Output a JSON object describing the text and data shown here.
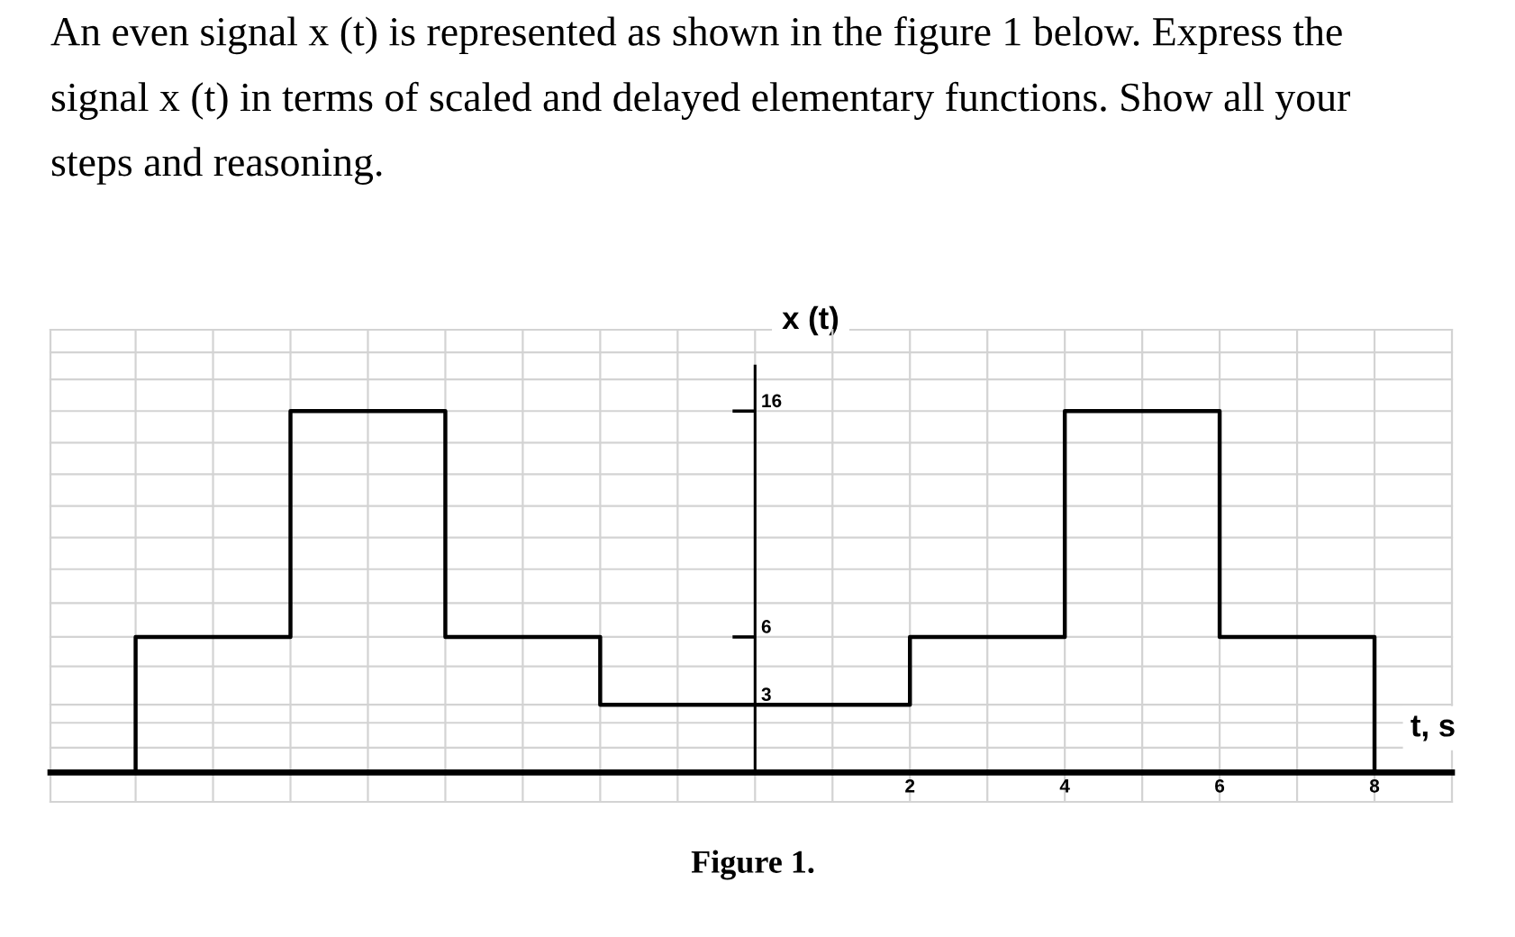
{
  "chart_data": {
    "type": "step",
    "title": "An even signal x (t) is represented as shown in the figure 1 below. Express the signal x (t) in terms of scaled and delayed elementary functions. Show all your steps and reasoning.",
    "xlabel": "t, s",
    "ylabel": "x (t)",
    "annotations": [
      "Figure 1."
    ],
    "x": [
      -8,
      -8,
      -6,
      -4,
      -2,
      2,
      4,
      6,
      8
    ],
    "values": [
      0,
      6,
      16,
      6,
      3,
      6,
      16,
      6,
      0
    ],
    "color": "#000000",
    "xlim": [
      -9.1,
      9
    ],
    "xticks": [
      {
        "value": -9.1,
        "label": null
      },
      {
        "value": -8,
        "label": null
      },
      {
        "value": -7,
        "label": null
      },
      {
        "value": -6,
        "label": null
      },
      {
        "value": -5,
        "label": null
      },
      {
        "value": -4,
        "label": null
      },
      {
        "value": -3,
        "label": null
      },
      {
        "value": -2,
        "label": null
      },
      {
        "value": -1,
        "label": null
      },
      {
        "value": 0,
        "label": null
      },
      {
        "value": 1,
        "label": null
      },
      2,
      {
        "value": 3,
        "label": null
      },
      4,
      {
        "value": 5,
        "label": null
      },
      6,
      {
        "value": 7,
        "label": null
      },
      8,
      {
        "value": 9,
        "label": null
      }
    ],
    "ylim": [
      -1.3,
      19.6
    ],
    "yticks": [
      {
        "value": -1.3,
        "label": null
      },
      {
        "value": 1.1,
        "label": null
      },
      {
        "value": 2.2,
        "label": null
      },
      3,
      {
        "value": 4.7,
        "label": null
      },
      6,
      {
        "value": 7.5,
        "label": null
      },
      {
        "value": 9.0,
        "label": null
      },
      {
        "value": 10.4,
        "label": null
      },
      {
        "value": 11.8,
        "label": null
      },
      {
        "value": 13.2,
        "label": null
      },
      {
        "value": 14.6,
        "label": null
      },
      16,
      {
        "value": 17.4,
        "label": null
      },
      {
        "value": 18.6,
        "label": null
      },
      {
        "value": 19.6,
        "label": null
      }
    ],
    "grid": true
  }
}
